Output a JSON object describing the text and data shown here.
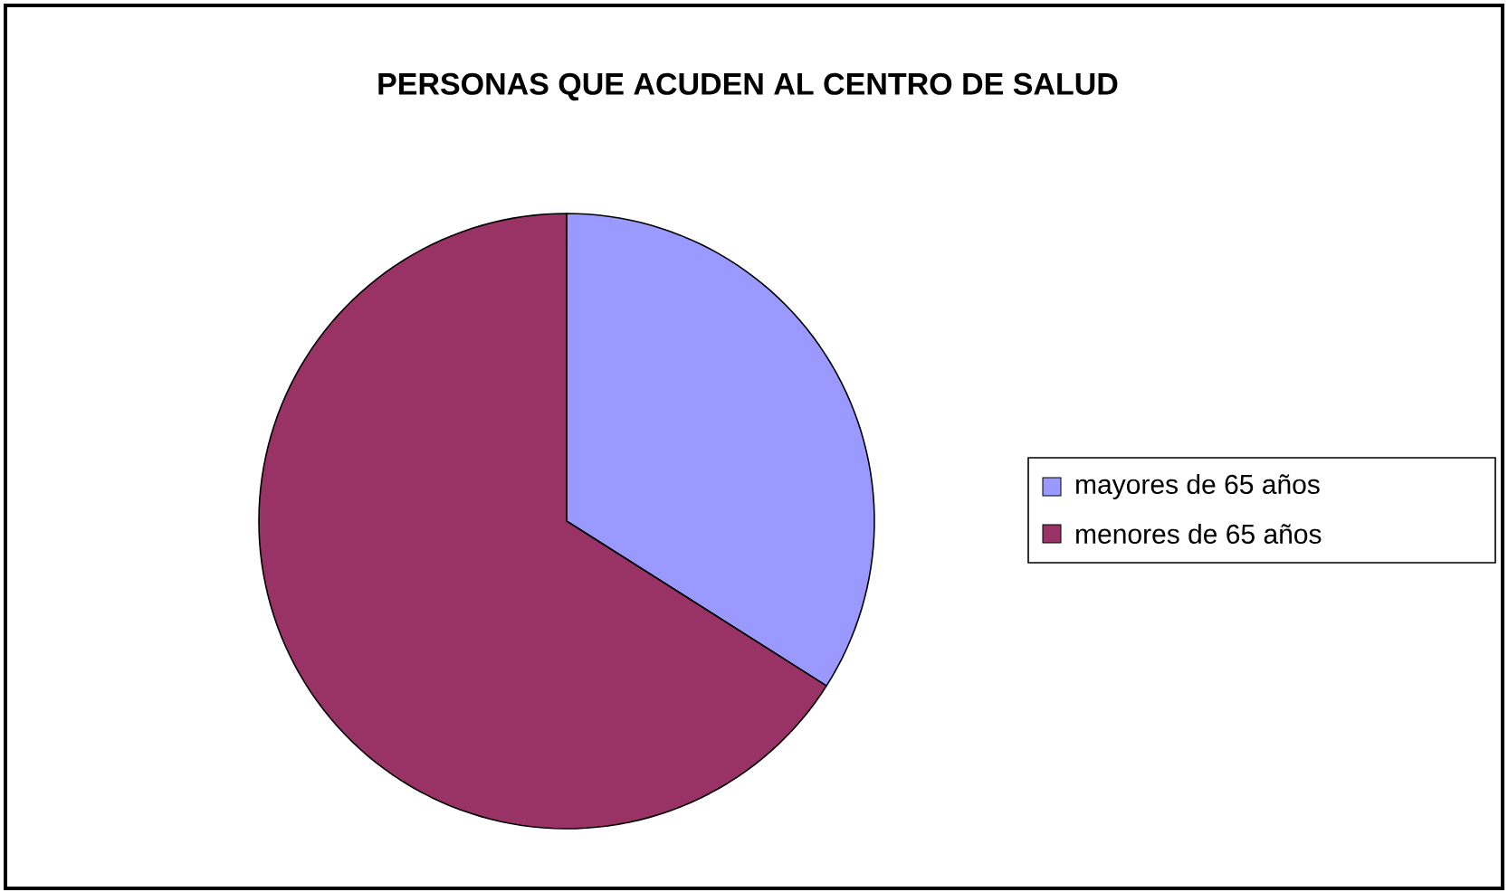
{
  "chart_data": {
    "type": "pie",
    "title": "PERSONAS QUE ACUDEN AL CENTRO DE SALUD",
    "categories": [
      "mayores de 65 años",
      "menores de 65 años"
    ],
    "values": [
      34,
      66
    ],
    "colors": [
      "#9999ff",
      "#993366"
    ],
    "legend": "right"
  }
}
